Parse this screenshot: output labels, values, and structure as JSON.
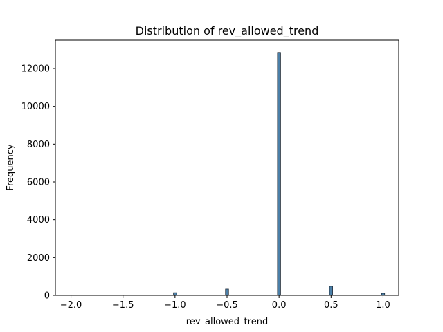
{
  "chart_data": {
    "type": "bar",
    "title": "Distribution of rev_allowed_trend",
    "xlabel": "rev_allowed_trend",
    "ylabel": "Frequency",
    "xlim": [
      -2.15,
      1.15
    ],
    "ylim": [
      0,
      13500
    ],
    "xticks": [
      -2.0,
      -1.5,
      -1.0,
      -0.5,
      0.0,
      0.5,
      1.0
    ],
    "xtick_labels": [
      "−2.0",
      "−1.5",
      "−1.0",
      "−0.5",
      "0.0",
      "0.5",
      "1.0"
    ],
    "yticks": [
      0,
      2000,
      4000,
      6000,
      8000,
      10000,
      12000
    ],
    "ytick_labels": [
      "0",
      "2000",
      "4000",
      "6000",
      "8000",
      "10000",
      "12000"
    ],
    "bin_width": 0.03,
    "bins": [
      {
        "x": -2.0,
        "count": 10
      },
      {
        "x": -1.0,
        "count": 140
      },
      {
        "x": -0.5,
        "count": 330
      },
      {
        "x": 0.0,
        "count": 12850
      },
      {
        "x": 0.5,
        "count": 480
      },
      {
        "x": 1.0,
        "count": 110
      }
    ],
    "bar_color": "#4a7fa8",
    "edge_color": "#1f2a36",
    "grid": false,
    "legend": "none"
  }
}
